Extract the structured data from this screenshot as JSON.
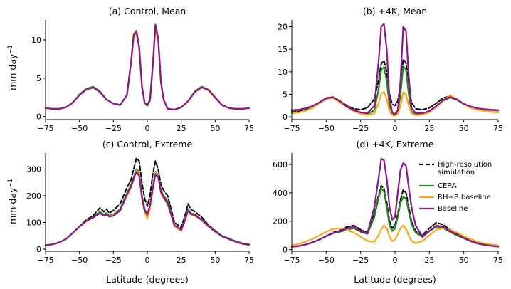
{
  "figure": {
    "xlabel": "Latitude (degrees)",
    "ylabel_main": "mm day",
    "ylabel_exp": "−1"
  },
  "legend": {
    "entries": [
      {
        "label": "High-resolution",
        "label2": "simulation",
        "color": "#000000",
        "dash": true
      },
      {
        "label": "CERA",
        "color": "#1f8a1f",
        "dash": false
      },
      {
        "label": "RH+B baseline",
        "color": "#ffa51a",
        "dash": false
      },
      {
        "label": "Baseline",
        "color": "#8b158f",
        "dash": false
      }
    ]
  },
  "colors": {
    "highres": "#000000",
    "cera": "#1f8a1f",
    "rhb": "#ffa51a",
    "baseline": "#8b158f"
  },
  "chart_data": [
    {
      "type": "line",
      "title": "(a) Control, Mean",
      "xlabel": "",
      "ylabel": "mm day−1",
      "xlim": [
        -75,
        75
      ],
      "ylim": [
        -0.4,
        12.6
      ],
      "xticks": [
        "−75",
        "−50",
        "−25",
        "0",
        "25",
        "50",
        "75"
      ],
      "yticks": [
        0,
        5,
        10
      ],
      "x": [
        -75,
        -70,
        -65,
        -60,
        -55,
        -50,
        -45,
        -40,
        -35,
        -30,
        -25,
        -20,
        -15,
        -12,
        -10,
        -8,
        -6,
        -4,
        -2,
        0,
        2,
        4,
        6,
        8,
        10,
        12,
        15,
        20,
        25,
        30,
        35,
        40,
        45,
        50,
        55,
        60,
        65,
        70,
        75
      ],
      "series": [
        {
          "name": "High-resolution simulation",
          "key": "highres",
          "values": [
            1.1,
            1.0,
            1.0,
            1.2,
            1.8,
            2.8,
            3.5,
            3.8,
            3.2,
            2.2,
            1.7,
            1.5,
            2.8,
            7.0,
            10.5,
            11.0,
            9.0,
            4.0,
            1.8,
            1.5,
            2.2,
            6.5,
            11.8,
            10.0,
            4.5,
            2.2,
            1.0,
            0.9,
            1.2,
            2.0,
            3.2,
            3.8,
            3.5,
            2.5,
            1.5,
            1.1,
            1.0,
            1.0,
            1.1
          ]
        },
        {
          "name": "CERA",
          "key": "cera",
          "values": [
            1.1,
            1.0,
            1.0,
            1.2,
            1.8,
            2.9,
            3.6,
            3.9,
            3.3,
            2.2,
            1.7,
            1.5,
            2.8,
            7.1,
            10.7,
            11.2,
            9.1,
            4.0,
            1.8,
            1.4,
            2.1,
            6.6,
            12.0,
            10.2,
            4.5,
            2.2,
            1.0,
            0.9,
            1.2,
            2.0,
            3.3,
            3.9,
            3.5,
            2.5,
            1.5,
            1.1,
            1.0,
            1.0,
            1.1
          ]
        },
        {
          "name": "RH+B baseline",
          "key": "rhb",
          "values": [
            1.1,
            1.0,
            1.0,
            1.2,
            1.8,
            2.8,
            3.5,
            3.8,
            3.2,
            2.2,
            1.7,
            1.5,
            2.7,
            6.8,
            10.3,
            10.8,
            8.9,
            4.0,
            1.8,
            1.5,
            2.2,
            6.4,
            11.6,
            9.8,
            4.4,
            2.2,
            1.0,
            0.9,
            1.2,
            2.0,
            3.2,
            3.8,
            3.4,
            2.4,
            1.5,
            1.1,
            1.0,
            1.0,
            1.1
          ]
        },
        {
          "name": "Baseline",
          "key": "baseline",
          "values": [
            1.1,
            1.0,
            1.0,
            1.2,
            1.8,
            2.8,
            3.5,
            3.8,
            3.2,
            2.2,
            1.7,
            1.5,
            2.8,
            7.0,
            10.6,
            11.1,
            9.0,
            4.0,
            1.8,
            1.5,
            2.2,
            6.5,
            11.9,
            10.1,
            4.5,
            2.2,
            1.0,
            0.9,
            1.2,
            2.0,
            3.2,
            3.8,
            3.5,
            2.5,
            1.5,
            1.1,
            1.0,
            1.0,
            1.1
          ]
        }
      ]
    },
    {
      "type": "line",
      "title": "(b) +4K, Mean",
      "xlabel": "",
      "ylabel": "",
      "xlim": [
        -75,
        75
      ],
      "ylim": [
        -0.6,
        21.5
      ],
      "xticks": [
        "−75",
        "−50",
        "−25",
        "0",
        "25",
        "50",
        "75"
      ],
      "yticks": [
        0,
        5,
        10,
        15,
        20
      ],
      "x": [
        -75,
        -70,
        -65,
        -60,
        -55,
        -50,
        -45,
        -40,
        -35,
        -30,
        -25,
        -20,
        -15,
        -12,
        -10,
        -8,
        -6,
        -4,
        -2,
        0,
        2,
        4,
        6,
        8,
        10,
        12,
        15,
        20,
        25,
        30,
        35,
        40,
        45,
        50,
        55,
        60,
        65,
        70,
        75
      ],
      "series": [
        {
          "name": "High-resolution simulation",
          "key": "highres",
          "values": [
            1.0,
            1.2,
            1.6,
            2.2,
            3.2,
            4.2,
            4.4,
            3.5,
            2.5,
            1.8,
            1.6,
            2.0,
            4.0,
            8.0,
            11.8,
            12.5,
            10.0,
            5.0,
            2.8,
            2.5,
            3.5,
            7.0,
            12.8,
            12.0,
            7.0,
            3.2,
            1.8,
            1.6,
            2.0,
            3.0,
            4.2,
            4.6,
            3.8,
            2.8,
            2.2,
            1.8,
            1.6,
            1.5,
            1.5
          ]
        },
        {
          "name": "CERA",
          "key": "cera",
          "values": [
            1.3,
            1.5,
            1.8,
            2.3,
            3.2,
            4.1,
            4.3,
            3.4,
            2.2,
            1.4,
            0.9,
            0.6,
            1.5,
            6.0,
            10.5,
            11.0,
            8.0,
            2.5,
            0.8,
            0.5,
            1.0,
            5.0,
            11.2,
            10.5,
            5.0,
            1.2,
            0.6,
            0.7,
            1.2,
            2.3,
            3.6,
            4.3,
            3.8,
            2.8,
            2.2,
            1.8,
            1.6,
            1.5,
            1.4
          ]
        },
        {
          "name": "RH+B baseline",
          "key": "rhb",
          "values": [
            0.8,
            1.0,
            1.3,
            2.0,
            3.0,
            4.0,
            4.2,
            3.2,
            2.2,
            1.3,
            0.7,
            0.4,
            0.8,
            3.0,
            5.2,
            5.5,
            4.0,
            1.2,
            0.4,
            0.3,
            0.6,
            2.5,
            5.5,
            5.0,
            2.5,
            0.8,
            0.4,
            0.5,
            1.0,
            2.2,
            3.6,
            4.8,
            4.0,
            2.8,
            2.0,
            1.6,
            1.3,
            1.1,
            1.0
          ]
        },
        {
          "name": "Baseline",
          "key": "baseline",
          "values": [
            1.5,
            1.6,
            1.9,
            2.4,
            3.2,
            4.1,
            4.4,
            3.5,
            2.3,
            1.5,
            1.0,
            0.8,
            2.5,
            12.0,
            20.0,
            20.6,
            15.0,
            4.0,
            1.0,
            0.6,
            1.5,
            8.0,
            20.0,
            19.0,
            9.0,
            2.0,
            0.8,
            0.8,
            1.3,
            2.4,
            3.7,
            4.4,
            3.9,
            2.9,
            2.3,
            1.9,
            1.7,
            1.6,
            1.5
          ]
        }
      ]
    },
    {
      "type": "line",
      "title": "(c) Control, Extreme",
      "xlabel": "Latitude (degrees)",
      "ylabel": "mm day−1",
      "xlim": [
        -75,
        75
      ],
      "ylim": [
        -8,
        360
      ],
      "xticks": [
        "−75",
        "−50",
        "−25",
        "0",
        "25",
        "50",
        "75"
      ],
      "yticks": [
        0,
        100,
        200,
        300
      ],
      "x": [
        -75,
        -70,
        -65,
        -60,
        -55,
        -50,
        -45,
        -40,
        -35,
        -32,
        -30,
        -28,
        -25,
        -20,
        -15,
        -12,
        -10,
        -8,
        -6,
        -4,
        -2,
        0,
        2,
        4,
        6,
        8,
        10,
        12,
        15,
        20,
        25,
        28,
        30,
        32,
        35,
        40,
        45,
        50,
        55,
        60,
        65,
        70,
        75
      ],
      "series": [
        {
          "name": "High-resolution simulation",
          "key": "highres",
          "values": [
            15,
            18,
            25,
            38,
            60,
            85,
            110,
            125,
            155,
            140,
            150,
            135,
            145,
            170,
            230,
            260,
            300,
            340,
            330,
            250,
            190,
            160,
            200,
            280,
            330,
            300,
            240,
            220,
            200,
            100,
            80,
            130,
            170,
            150,
            140,
            120,
            90,
            70,
            50,
            40,
            30,
            22,
            18
          ]
        },
        {
          "name": "CERA",
          "key": "cera",
          "values": [
            15,
            18,
            25,
            38,
            60,
            85,
            105,
            120,
            140,
            130,
            135,
            125,
            130,
            150,
            210,
            240,
            270,
            300,
            290,
            200,
            150,
            130,
            160,
            230,
            290,
            275,
            220,
            200,
            180,
            90,
            70,
            115,
            150,
            135,
            130,
            110,
            88,
            68,
            50,
            40,
            30,
            22,
            18
          ]
        },
        {
          "name": "RH+B baseline",
          "key": "rhb",
          "values": [
            15,
            18,
            25,
            38,
            60,
            85,
            105,
            118,
            135,
            125,
            130,
            122,
            128,
            145,
            200,
            230,
            260,
            295,
            285,
            190,
            140,
            115,
            150,
            220,
            285,
            270,
            210,
            190,
            170,
            85,
            68,
            110,
            145,
            130,
            125,
            108,
            85,
            66,
            48,
            38,
            28,
            20,
            16
          ]
        },
        {
          "name": "Baseline",
          "key": "baseline",
          "values": [
            15,
            18,
            25,
            38,
            60,
            85,
            105,
            118,
            135,
            125,
            130,
            122,
            125,
            145,
            205,
            235,
            265,
            290,
            275,
            195,
            145,
            130,
            165,
            225,
            280,
            270,
            215,
            195,
            170,
            90,
            72,
            112,
            145,
            132,
            128,
            110,
            86,
            66,
            48,
            38,
            28,
            20,
            16
          ]
        }
      ]
    },
    {
      "type": "line",
      "title": "(d) +4K, Extreme",
      "xlabel": "Latitude (degrees)",
      "ylabel": "",
      "xlim": [
        -75,
        75
      ],
      "ylim": [
        -12,
        680
      ],
      "xticks": [
        "−75",
        "−50",
        "−25",
        "0",
        "25",
        "50",
        "75"
      ],
      "yticks": [
        0,
        200,
        400,
        600
      ],
      "x": [
        -75,
        -70,
        -65,
        -60,
        -55,
        -50,
        -45,
        -40,
        -35,
        -30,
        -25,
        -20,
        -15,
        -12,
        -10,
        -8,
        -6,
        -4,
        -2,
        0,
        2,
        4,
        6,
        8,
        10,
        12,
        15,
        20,
        25,
        30,
        35,
        40,
        45,
        50,
        55,
        60,
        65,
        70,
        75
      ],
      "series": [
        {
          "name": "High-resolution simulation",
          "key": "highres",
          "values": [
            20,
            25,
            35,
            50,
            70,
            95,
            120,
            135,
            160,
            170,
            140,
            120,
            250,
            380,
            450,
            430,
            330,
            200,
            150,
            170,
            250,
            350,
            420,
            400,
            300,
            200,
            130,
            100,
            150,
            190,
            175,
            140,
            110,
            85,
            60,
            45,
            35,
            28,
            22
          ]
        },
        {
          "name": "CERA",
          "key": "cera",
          "values": [
            20,
            25,
            35,
            50,
            70,
            95,
            115,
            125,
            140,
            150,
            125,
            110,
            230,
            360,
            430,
            410,
            300,
            170,
            130,
            150,
            230,
            330,
            370,
            360,
            270,
            180,
            120,
            90,
            130,
            160,
            150,
            125,
            100,
            80,
            58,
            42,
            32,
            26,
            20
          ]
        },
        {
          "name": "RH+B baseline",
          "key": "rhb",
          "values": [
            30,
            40,
            55,
            75,
            100,
            125,
            145,
            150,
            140,
            120,
            90,
            60,
            55,
            100,
            140,
            170,
            150,
            90,
            60,
            70,
            110,
            150,
            170,
            145,
            100,
            60,
            45,
            60,
            100,
            140,
            150,
            140,
            120,
            95,
            72,
            55,
            42,
            35,
            30
          ]
        },
        {
          "name": "Baseline",
          "key": "baseline",
          "values": [
            20,
            25,
            35,
            50,
            70,
            95,
            115,
            130,
            150,
            160,
            130,
            115,
            300,
            500,
            640,
            630,
            500,
            300,
            210,
            230,
            400,
            560,
            610,
            590,
            440,
            300,
            170,
            90,
            130,
            170,
            160,
            130,
            105,
            82,
            60,
            44,
            34,
            27,
            22
          ]
        }
      ]
    }
  ]
}
